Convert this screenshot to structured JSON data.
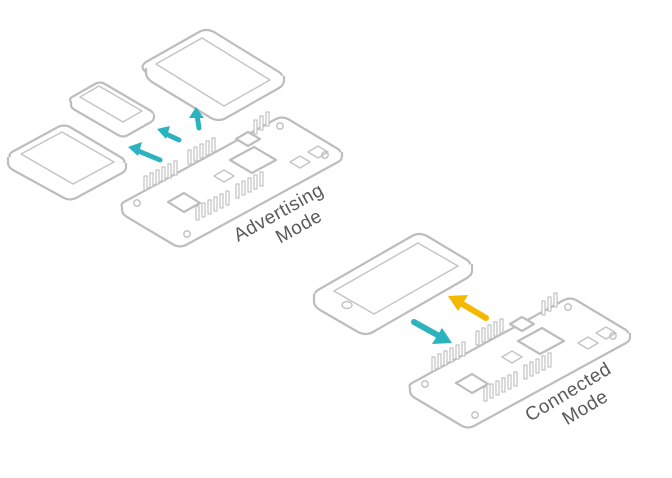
{
  "labels": {
    "advertising_line1": "Advertising",
    "advertising_line2": "Mode",
    "connected_line1": "Connected",
    "connected_line2": "Mode"
  },
  "colors": {
    "advertising_arrow": "#2bb3c0",
    "connected_arrow_down": "#2bb3c0",
    "connected_arrow_up": "#f5b800",
    "outline": "#bdbdbd",
    "text": "#5a5a5a"
  },
  "icons": {
    "board": "microcontroller-board-icon",
    "tablet": "tablet-icon",
    "phone": "smartphone-icon"
  }
}
